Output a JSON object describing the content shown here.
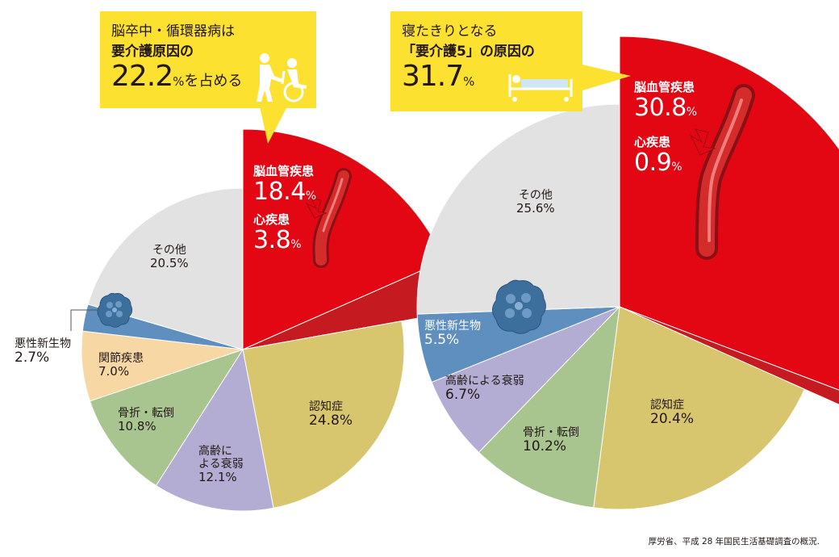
{
  "chart_data": [
    {
      "type": "pie",
      "values": [
        18.4,
        3.8,
        24.8,
        12.1,
        10.8,
        7.0,
        2.7,
        20.5
      ],
      "categories": [
        "脳血管疾患",
        "心疾患",
        "認知症",
        "高齢による衰弱",
        "骨折・転倒",
        "関節疾患",
        "悪性新生物",
        "その他"
      ],
      "colors": [
        "#e30613",
        "#c51a20",
        "#d7c66d",
        "#b3acd3",
        "#a8c58f",
        "#f7d7a3",
        "#5f8fbf",
        "#e2e2e2"
      ]
    },
    {
      "type": "pie",
      "values": [
        30.8,
        0.9,
        20.4,
        10.2,
        6.7,
        5.5,
        25.6
      ],
      "categories": [
        "脳血管疾患",
        "心疾患",
        "認知症",
        "骨折・転倒",
        "高齢による衰弱",
        "悪性新生物",
        "その他"
      ],
      "colors": [
        "#e30613",
        "#c51a20",
        "#d7c66d",
        "#a8c58f",
        "#b3acd3",
        "#5f8fbf",
        "#e2e2e2"
      ]
    }
  ],
  "callout_left": {
    "line1": "脳卒中・循環器病は",
    "line2": "要介護原因の",
    "value": "22.2",
    "unit": "%",
    "suffix": "を占める"
  },
  "callout_right": {
    "line1": "寝たきりとなる",
    "line2": "「要介護5」の原因の",
    "value": "31.7",
    "unit": "%"
  },
  "left_labels": {
    "cerebro_name": "脳血管疾患",
    "cerebro_pct": "18.4",
    "cerebro_unit": "%",
    "heart_name": "心疾患",
    "heart_pct": "3.8",
    "heart_unit": "%",
    "dementia_name": "認知症",
    "dementia_pct": "24.8%",
    "frailty_name1": "高齢に",
    "frailty_name2": "よる衰弱",
    "frailty_pct": "12.1%",
    "fracture_name": "骨折・転倒",
    "fracture_pct": "10.8%",
    "joint_name": "関節疾患",
    "joint_pct": "7.0%",
    "cancer_name": "悪性新生物",
    "cancer_pct": "2.7%",
    "other_name": "その他",
    "other_pct": "20.5%"
  },
  "right_labels": {
    "cerebro_name": "脳血管疾患",
    "cerebro_pct": "30.8",
    "cerebro_unit": "%",
    "heart_name": "心疾患",
    "heart_pct": "0.9",
    "heart_unit": "%",
    "dementia_name": "認知症",
    "dementia_pct": "20.4%",
    "fracture_name": "骨折・転倒",
    "fracture_pct": "10.2%",
    "frailty_name": "高齢による衰弱",
    "frailty_pct": "6.7%",
    "cancer_name": "悪性新生物",
    "cancer_pct": "5.5%",
    "other_name": "その他",
    "other_pct": "25.6%"
  },
  "source": "厚労省、平成 28 年国民生活基礎調査の概況.",
  "icons": [
    "wheelchair-care-icon",
    "hospital-bed-icon",
    "blood-vessel-icon",
    "tumor-cell-icon"
  ]
}
